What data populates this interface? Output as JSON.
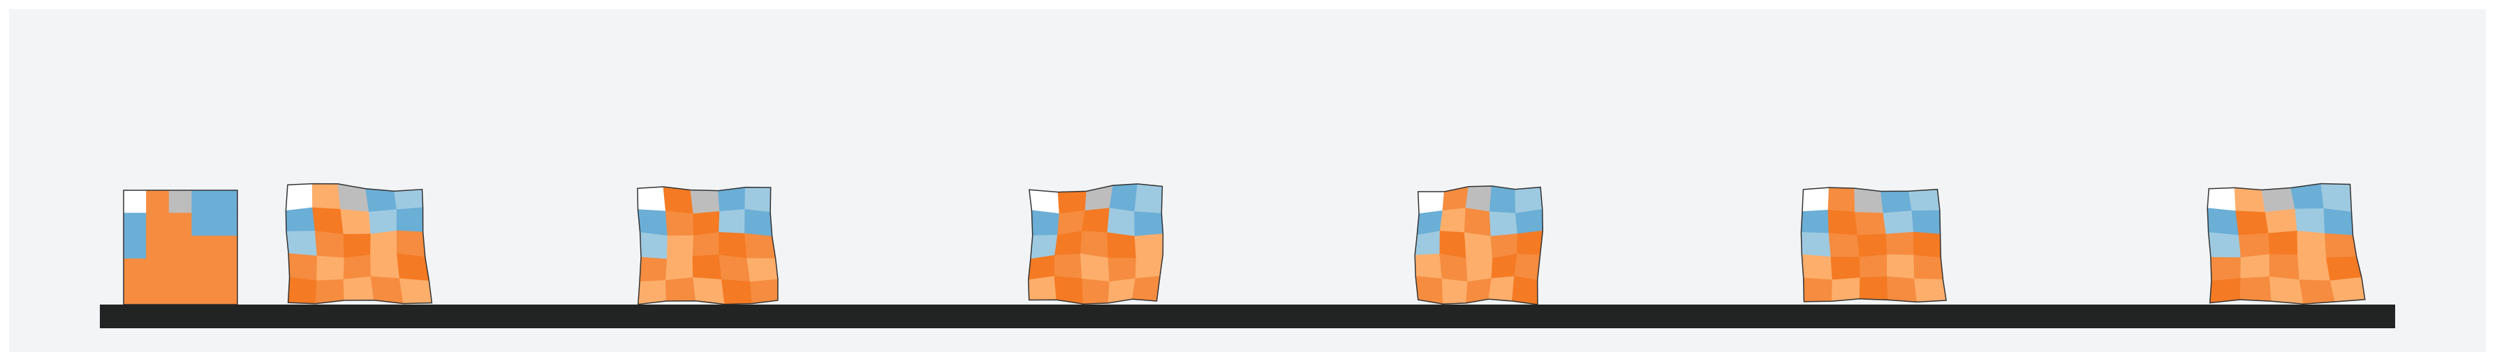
{
  "title": "",
  "frames": 7,
  "colors": {
    "page_background": "#ffffff",
    "panel_background": "#f3f4f6",
    "ground": "#222424",
    "outline": "#333333",
    "blue": "#6baed6",
    "light_blue": "#9ecae1",
    "gray": "#bdbdbd",
    "white": "#ffffff",
    "orange": "#f58c3f",
    "dark_orange": "#f47a23",
    "light_orange": "#fdae6b"
  }
}
